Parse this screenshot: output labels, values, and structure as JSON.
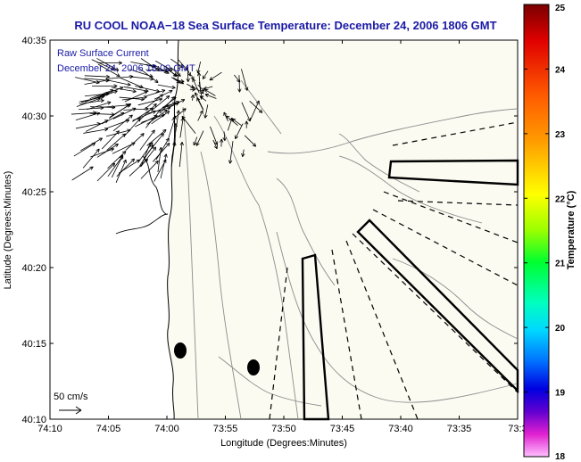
{
  "title": "RU COOL  NOAA−18  Sea Surface Temperature:  December 24, 2006 1806 GMT",
  "overlay": {
    "line1": "Raw Surface Current",
    "line2": "December 24, 2006 18:00 GMT"
  },
  "scale_label": "50 cm/s",
  "map": {
    "xlabel": "Longitude (Degrees:Minutes)",
    "ylabel": "Latitude (Degrees:Minutes)",
    "x_ticks": [
      "74:10",
      "74:05",
      "74:00",
      "73:55",
      "73:50",
      "73:45",
      "73:40",
      "73:35",
      "73:3"
    ],
    "y_ticks": [
      "40:35",
      "40:30",
      "40:25",
      "40:20",
      "40:15",
      "40:10"
    ]
  },
  "colorbar": {
    "label": "Temperature (°C)",
    "ticks": [
      "25",
      "24",
      "23",
      "22",
      "21",
      "20",
      "19",
      "18"
    ],
    "range": [
      18,
      25
    ]
  },
  "colors": {
    "title": "#1a1aa6",
    "text": "#000000",
    "land": "#ffffff",
    "sea": "#fafaf0"
  }
}
